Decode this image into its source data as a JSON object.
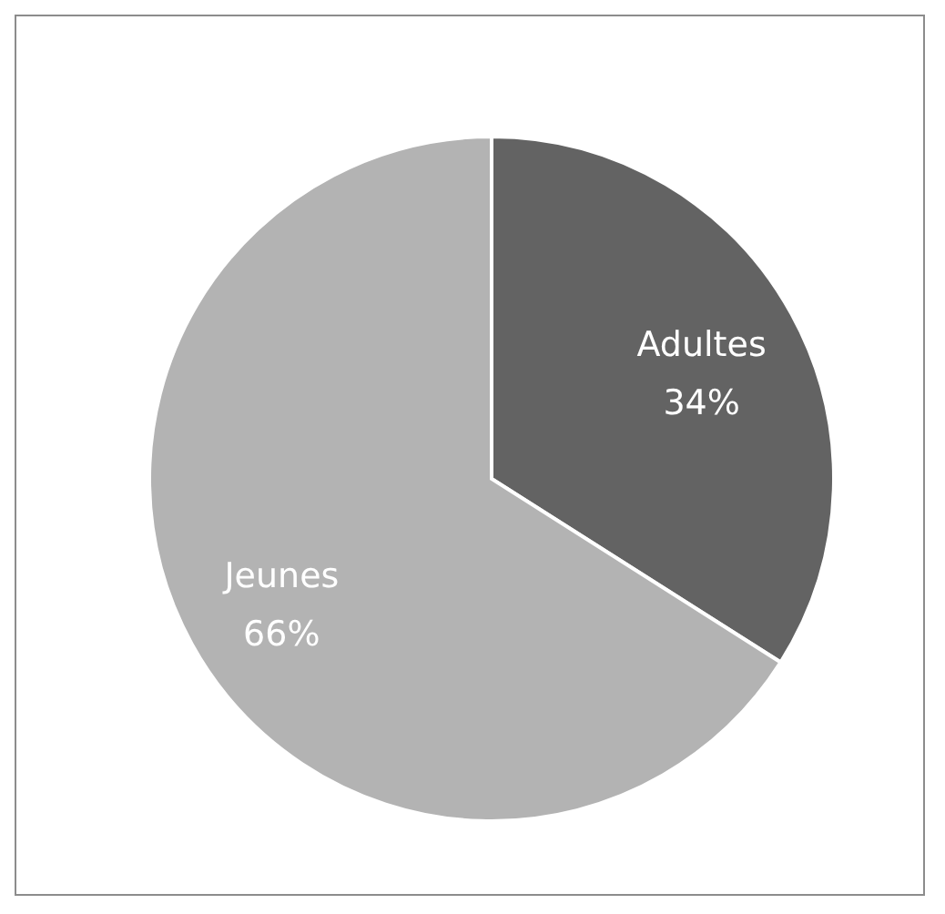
{
  "chart_data": {
    "type": "pie",
    "categories": [
      "Adultes",
      "Jeunes"
    ],
    "values": [
      34,
      66
    ],
    "value_labels": [
      "34%",
      "66%"
    ],
    "colors": [
      "#636363",
      "#b3b3b3"
    ],
    "legend": false
  }
}
